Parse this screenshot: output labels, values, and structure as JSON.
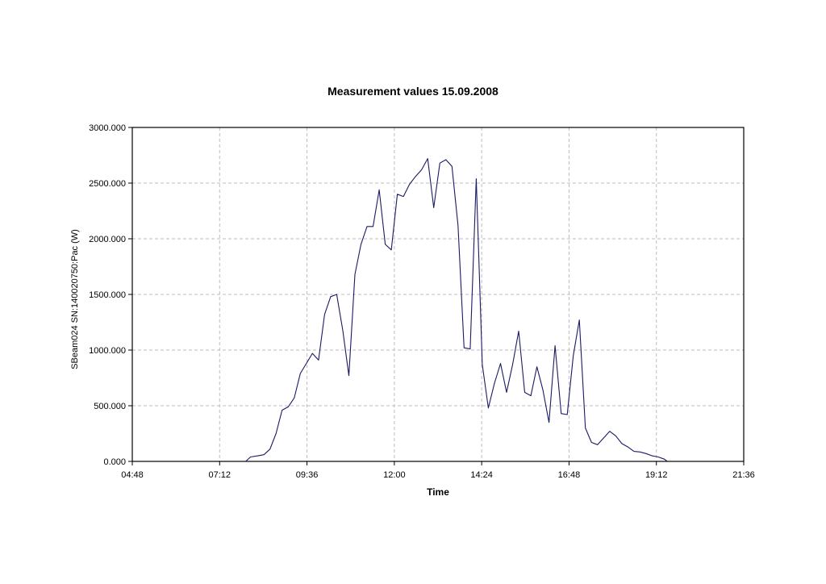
{
  "chart_data": {
    "type": "line",
    "title": "Measurement values 15.09.2008",
    "xlabel": "Time",
    "ylabel": "SBeam024 SN:140020750:Pac (W)",
    "xlim": [
      "04:48",
      "21:36"
    ],
    "ylim": [
      0,
      3000
    ],
    "x_ticks": [
      "04:48",
      "07:12",
      "09:36",
      "12:00",
      "14:24",
      "16:48",
      "19:12",
      "21:36"
    ],
    "y_ticks": [
      "0.000",
      "500.000",
      "1000.000",
      "1500.000",
      "2000.000",
      "2500.000",
      "3000.000"
    ],
    "grid": true,
    "line_color": "#1a1a66",
    "series": [
      {
        "x": [
          "07:55",
          "08:03",
          "08:15",
          "08:25",
          "08:35",
          "08:45",
          "08:55",
          "09:05",
          "09:15",
          "09:25",
          "09:35",
          "09:45",
          "09:55",
          "10:05",
          "10:15",
          "10:25",
          "10:35",
          "10:45",
          "10:55",
          "11:05",
          "11:15",
          "11:25",
          "11:35",
          "11:45",
          "11:55",
          "12:05",
          "12:15",
          "12:25",
          "12:35",
          "12:45",
          "12:55",
          "13:05",
          "13:15",
          "13:25",
          "13:35",
          "13:45",
          "13:55",
          "14:05",
          "14:15",
          "14:25",
          "14:35",
          "14:45",
          "14:55",
          "15:05",
          "15:15",
          "15:25",
          "15:35",
          "15:45",
          "15:55",
          "16:05",
          "16:15",
          "16:25",
          "16:35",
          "16:45",
          "16:55",
          "17:05",
          "17:15",
          "17:25",
          "17:35",
          "17:45",
          "17:55",
          "18:05",
          "18:15",
          "18:25",
          "18:35",
          "18:45",
          "18:55",
          "19:05",
          "19:15",
          "19:25",
          "19:30"
        ],
        "values": [
          0,
          40,
          50,
          60,
          110,
          250,
          460,
          490,
          570,
          790,
          880,
          970,
          910,
          1320,
          1480,
          1500,
          1180,
          770,
          1680,
          1950,
          2110,
          2110,
          2440,
          1950,
          1900,
          2400,
          2380,
          2490,
          2560,
          2620,
          2720,
          2280,
          2680,
          2710,
          2650,
          2120,
          1020,
          1010,
          2540,
          870,
          480,
          700,
          880,
          620,
          870,
          1170,
          620,
          590,
          850,
          640,
          350,
          1040,
          430,
          420,
          950,
          1270,
          300,
          170,
          150,
          210,
          270,
          230,
          160,
          130,
          90,
          85,
          70,
          50,
          40,
          20,
          0
        ]
      }
    ]
  }
}
